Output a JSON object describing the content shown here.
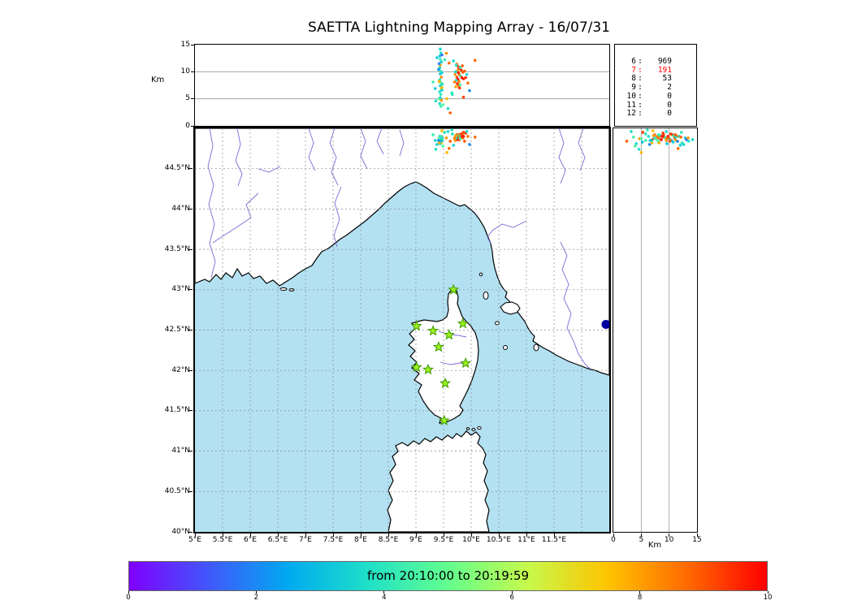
{
  "title": "SAETTA Lightning Mapping Array - 16/07/31",
  "axes": {
    "altitude": {
      "label": "Km",
      "range": [
        0,
        15
      ],
      "tick_values": [
        0,
        5,
        10,
        15
      ],
      "tick_labels": [
        "0",
        "5",
        "10",
        "15"
      ]
    },
    "map": {
      "lon_range": [
        5,
        12.5
      ],
      "lat_range": [
        40,
        45
      ],
      "lon_tick_values": [
        5,
        5.5,
        6,
        6.5,
        7,
        7.5,
        8,
        8.5,
        9,
        9.5,
        10,
        10.5,
        11,
        11.5
      ],
      "lon_tick_labels": [
        "5°E",
        "5.5°E",
        "6°E",
        "6.5°E",
        "7°E",
        "7.5°E",
        "8°E",
        "8.5°E",
        "9°E",
        "9.5°E",
        "10°E",
        "10.5°E",
        "11°E",
        "11.5°E"
      ],
      "lat_tick_values": [
        44.5,
        44,
        43.5,
        43,
        42.5,
        42,
        41.5,
        41,
        40.5,
        40
      ],
      "lat_tick_labels": [
        "44.5°N",
        "44°N",
        "43.5°N",
        "43°N",
        "42.5°N",
        "42°N",
        "41.5°N",
        "41°N",
        "40.5°N",
        "40°N"
      ]
    },
    "right_axis_label": "Km"
  },
  "station_counts": {
    "rows": [
      {
        "stations": "6",
        "count": "969",
        "color": "#000000"
      },
      {
        "stations": "7",
        "count": "191",
        "color": "#ff0000"
      },
      {
        "stations": "8",
        "count": "53",
        "color": "#000000"
      },
      {
        "stations": "9",
        "count": "2",
        "color": "#000000"
      },
      {
        "stations": "10",
        "count": "0",
        "color": "#000000"
      },
      {
        "stations": "11",
        "count": "0",
        "color": "#000000"
      },
      {
        "stations": "12",
        "count": "0",
        "color": "#000000"
      }
    ]
  },
  "colorbar": {
    "label": "from 20:10:00 to 20:19:59",
    "range": [
      0,
      10
    ],
    "tick_labels": [
      "0",
      "2",
      "4",
      "6",
      "8",
      "10"
    ],
    "colormap_stops": [
      "#8000ff",
      "#4158fb",
      "#00aaf0",
      "#1fe0c8",
      "#63ff8e",
      "#c6f94b",
      "#ffc400",
      "#ff6a00",
      "#ff0000"
    ]
  },
  "colors": {
    "sea": "#b3e1f2",
    "land": "#ffffff",
    "coast": "#000000",
    "river": "#6a5acd",
    "grid": "#8a8a8a",
    "star_fill": "#9df01e",
    "star_edge": "#3c9b00",
    "marker_navy": "#0000a0",
    "highlight_red": "#ff0000"
  },
  "chart_data": {
    "type": "scatter",
    "title": "SAETTA Lightning Mapping Array - 16/07/31",
    "time_window": {
      "from": "20:10:00",
      "to": "20:19:59"
    },
    "color_scale": {
      "range": [
        0,
        10
      ],
      "ticks": [
        0,
        2,
        4,
        6,
        8,
        10
      ],
      "meaning": "time within window (rainbow colormap)"
    },
    "panels": {
      "top": {
        "x": "longitude_deg_E",
        "x_range": [
          5,
          12.5
        ],
        "y": "altitude_km",
        "y_range": [
          0,
          15
        ]
      },
      "map": {
        "x": "longitude_deg_E",
        "x_range": [
          5,
          12.5
        ],
        "y": "latitude_deg_N",
        "y_range": [
          40,
          45
        ]
      },
      "right": {
        "x": "altitude_km",
        "x_range": [
          0,
          15
        ],
        "y": "latitude_deg_N",
        "y_range": [
          40,
          45
        ]
      }
    },
    "sources_per_station_count": {
      "6": 969,
      "7": 191,
      "8": 53,
      "9": 2,
      "10": 0,
      "11": 0,
      "12": 0
    },
    "points": [
      [
        9.44,
        44.86,
        14.2,
        3.6
      ],
      [
        9.45,
        44.84,
        13.5,
        3.9
      ],
      [
        9.43,
        44.88,
        12.9,
        3.2
      ],
      [
        9.44,
        44.82,
        12.3,
        4.1
      ],
      [
        9.46,
        44.9,
        11.8,
        3.5
      ],
      [
        9.44,
        44.85,
        11.2,
        7.9
      ],
      [
        9.43,
        44.83,
        10.7,
        3.4
      ],
      [
        9.45,
        44.87,
        10.1,
        4.3
      ],
      [
        9.44,
        44.81,
        9.6,
        3.1
      ],
      [
        9.46,
        44.89,
        9.0,
        8.3
      ],
      [
        9.43,
        44.86,
        8.5,
        3.7
      ],
      [
        9.45,
        44.84,
        8.0,
        4.5
      ],
      [
        9.44,
        44.88,
        7.4,
        3.3
      ],
      [
        9.46,
        44.82,
        6.9,
        7.6
      ],
      [
        9.43,
        44.9,
        6.3,
        3.8
      ],
      [
        9.45,
        44.85,
        5.8,
        4.2
      ],
      [
        9.44,
        44.83,
        5.2,
        3.0
      ],
      [
        9.46,
        44.87,
        4.7,
        8.1
      ],
      [
        9.43,
        44.81,
        4.1,
        3.6
      ],
      [
        9.45,
        44.89,
        3.6,
        4.4
      ],
      [
        9.47,
        44.86,
        13.1,
        1.6
      ],
      [
        9.42,
        44.84,
        11.5,
        1.9
      ],
      [
        9.47,
        44.88,
        9.8,
        3.5
      ],
      [
        9.42,
        44.82,
        8.2,
        7.8
      ],
      [
        9.47,
        44.85,
        6.6,
        3.2
      ],
      [
        9.42,
        44.87,
        5.0,
        4.6
      ],
      [
        9.41,
        44.85,
        10.4,
        2.2
      ],
      [
        9.48,
        44.87,
        7.7,
        3.9
      ],
      [
        9.74,
        44.9,
        11.4,
        8.6
      ],
      [
        9.76,
        44.88,
        11.0,
        9.1
      ],
      [
        9.78,
        44.92,
        10.6,
        9.5
      ],
      [
        9.75,
        44.86,
        10.2,
        8.1
      ],
      [
        9.77,
        44.9,
        9.8,
        9.8
      ],
      [
        9.79,
        44.88,
        9.4,
        8.8
      ],
      [
        9.74,
        44.92,
        9.0,
        9.2
      ],
      [
        9.76,
        44.86,
        8.6,
        9.9
      ],
      [
        9.78,
        44.9,
        8.2,
        8.4
      ],
      [
        9.75,
        44.88,
        7.8,
        9.6
      ],
      [
        9.77,
        44.92,
        7.4,
        8.7
      ],
      [
        9.79,
        44.86,
        7.0,
        9.4
      ],
      [
        9.73,
        44.89,
        11.2,
        3.8
      ],
      [
        9.8,
        44.91,
        10.8,
        4.1
      ],
      [
        9.72,
        44.87,
        10.0,
        3.5
      ],
      [
        9.81,
        44.89,
        9.2,
        4.3
      ],
      [
        9.73,
        44.91,
        8.4,
        3.6
      ],
      [
        9.8,
        44.87,
        7.6,
        4.5
      ],
      [
        9.82,
        44.93,
        10.3,
        9.3
      ],
      [
        9.71,
        44.85,
        9.5,
        8.2
      ],
      [
        9.83,
        44.9,
        8.9,
        9.7
      ],
      [
        9.7,
        44.88,
        8.1,
        8.5
      ],
      [
        9.84,
        44.92,
        11.1,
        9.0
      ],
      [
        9.85,
        44.88,
        9.9,
        8.9
      ],
      [
        9.86,
        44.9,
        8.7,
        9.6
      ],
      [
        9.72,
        44.91,
        7.2,
        8.0
      ],
      [
        9.38,
        44.8,
        12.6,
        3.4
      ],
      [
        9.52,
        44.95,
        12.2,
        4.1
      ],
      [
        9.6,
        44.75,
        11.6,
        8.7
      ],
      [
        9.66,
        44.93,
        5.8,
        3.9
      ],
      [
        9.56,
        44.7,
        5.0,
        7.7
      ],
      [
        9.9,
        44.94,
        8.9,
        9.4
      ],
      [
        9.94,
        44.9,
        7.9,
        8.6
      ],
      [
        9.35,
        44.85,
        6.9,
        3.3
      ],
      [
        9.49,
        44.78,
        3.9,
        4.6
      ],
      [
        9.58,
        44.96,
        3.2,
        3.7
      ],
      [
        9.62,
        44.84,
        2.4,
        8.9
      ],
      [
        9.88,
        44.84,
        10.1,
        9.0
      ],
      [
        9.92,
        44.96,
        9.5,
        3.6
      ],
      [
        9.31,
        44.92,
        8.1,
        4.3
      ],
      [
        9.55,
        44.88,
        13.4,
        8.2
      ],
      [
        9.68,
        44.79,
        12.0,
        3.5
      ],
      [
        9.47,
        44.97,
        7.1,
        7.6
      ],
      [
        9.65,
        44.98,
        6.1,
        4.0
      ],
      [
        9.86,
        44.95,
        5.3,
        9.2
      ],
      [
        9.36,
        44.74,
        4.6,
        3.8
      ],
      [
        10.07,
        44.89,
        12.1,
        8.8
      ],
      [
        9.97,
        44.8,
        6.5,
        2.0
      ]
    ],
    "lma_stations_lonlat": [
      [
        9.68,
        43.0
      ],
      [
        9.01,
        42.55
      ],
      [
        9.31,
        42.49
      ],
      [
        9.6,
        42.44
      ],
      [
        9.85,
        42.58
      ],
      [
        9.41,
        42.29
      ],
      [
        9.01,
        42.04
      ],
      [
        9.22,
        42.01
      ],
      [
        9.9,
        42.09
      ],
      [
        9.53,
        41.84
      ],
      [
        9.51,
        41.38
      ]
    ],
    "extra_marker": {
      "lon": 12.44,
      "lat": 42.57,
      "shape": "circle",
      "color": "#0000a0"
    }
  }
}
